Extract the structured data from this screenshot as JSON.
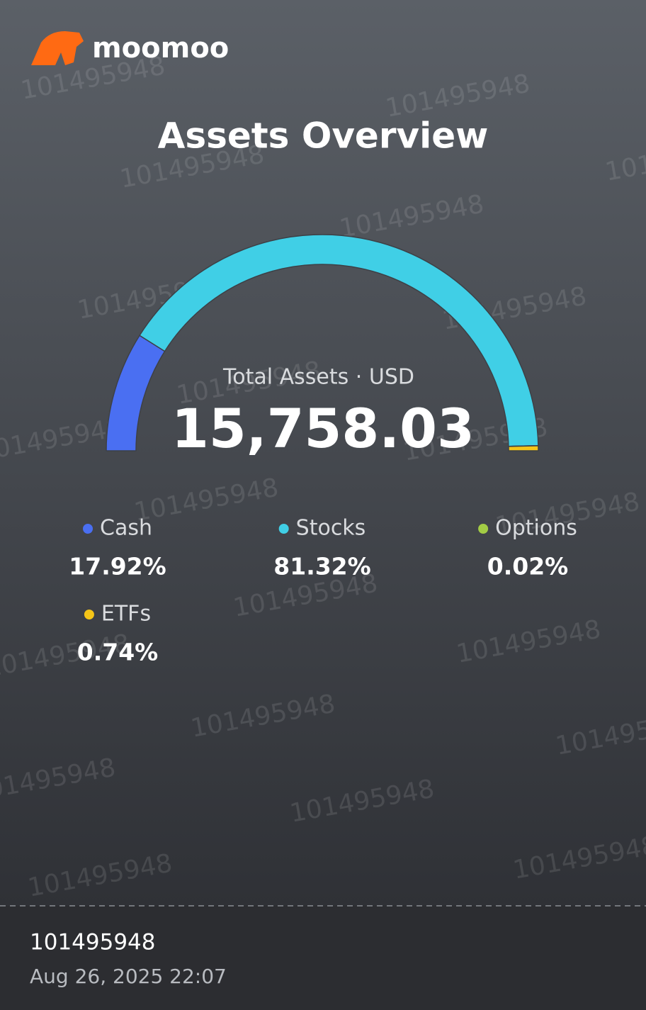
{
  "brand": "moomoo",
  "watermark": "101495948",
  "chart_data": {
    "type": "pie",
    "shape": "semicircle-gauge",
    "title": "Assets Overview",
    "subtitle": "Total Assets · USD",
    "center_value": "15,758.03",
    "categories": [
      "Cash",
      "Stocks",
      "Options",
      "ETFs"
    ],
    "values": [
      17.92,
      81.32,
      0.02,
      0.74
    ],
    "value_labels": [
      "17.92%",
      "81.32%",
      "0.02%",
      "0.74%"
    ],
    "colors": [
      "#4a6ff2",
      "#40cfe6",
      "#a3cc45",
      "#f5c518"
    ]
  },
  "footer": {
    "account": "101495948",
    "timestamp": "Aug 26, 2025 22:07"
  }
}
